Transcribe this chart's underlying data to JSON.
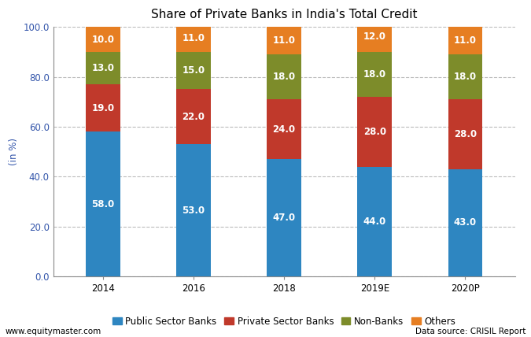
{
  "title": "Share of Private Banks in India's Total Credit",
  "categories": [
    "2014",
    "2016",
    "2018",
    "2019E",
    "2020P"
  ],
  "series": {
    "Public Sector Banks": [
      58.0,
      53.0,
      47.0,
      44.0,
      43.0
    ],
    "Private Sector Banks": [
      19.0,
      22.0,
      24.0,
      28.0,
      28.0
    ],
    "Non-Banks": [
      13.0,
      15.0,
      18.0,
      18.0,
      18.0
    ],
    "Others": [
      10.0,
      11.0,
      11.0,
      12.0,
      11.0
    ]
  },
  "colors": {
    "Public Sector Banks": "#2E86C1",
    "Private Sector Banks": "#C0392B",
    "Non-Banks": "#7D8C2A",
    "Others": "#E67E22"
  },
  "ylabel": "(in %)",
  "ylim": [
    0,
    100
  ],
  "yticks": [
    0.0,
    20.0,
    40.0,
    60.0,
    80.0,
    100.0
  ],
  "bar_width": 0.38,
  "legend_order": [
    "Public Sector Banks",
    "Private Sector Banks",
    "Non-Banks",
    "Others"
  ],
  "footer_left": "www.equitymaster.com",
  "footer_right": "Data source: CRISIL Report",
  "background_color": "#FFFFFF",
  "grid_color": "#BBBBBB",
  "title_fontsize": 11,
  "label_fontsize": 8.5,
  "tick_fontsize": 8.5,
  "footer_fontsize": 7.5,
  "value_fontsize": 8.5
}
